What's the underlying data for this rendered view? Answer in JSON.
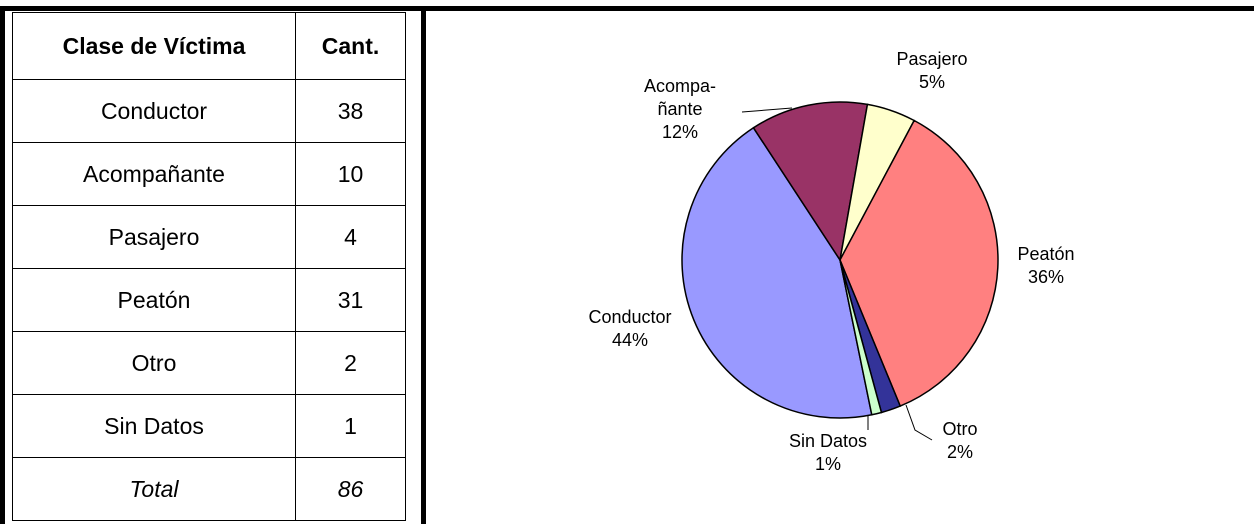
{
  "table": {
    "header": [
      "Clase de Víctima",
      "Cant."
    ],
    "rows": [
      [
        "Conductor",
        38
      ],
      [
        "Acompañante",
        10
      ],
      [
        "Pasajero",
        4
      ],
      [
        "Peatón",
        31
      ],
      [
        "Otro",
        2
      ],
      [
        "Sin Datos",
        1
      ]
    ],
    "total": [
      "Total",
      86
    ]
  },
  "chart_data": {
    "type": "pie",
    "categories": [
      "Conductor",
      "Acompa-\nñante",
      "Pasajero",
      "Peatón",
      "Otro",
      "Sin Datos"
    ],
    "values": [
      44,
      12,
      5,
      36,
      2,
      1
    ],
    "value_labels": [
      "44%",
      "12%",
      "5%",
      "36%",
      "2%",
      "1%"
    ],
    "colors": [
      "#9999ff",
      "#993366",
      "#ffffcc",
      "#ff8080",
      "#333399",
      "#ccffcc"
    ]
  }
}
